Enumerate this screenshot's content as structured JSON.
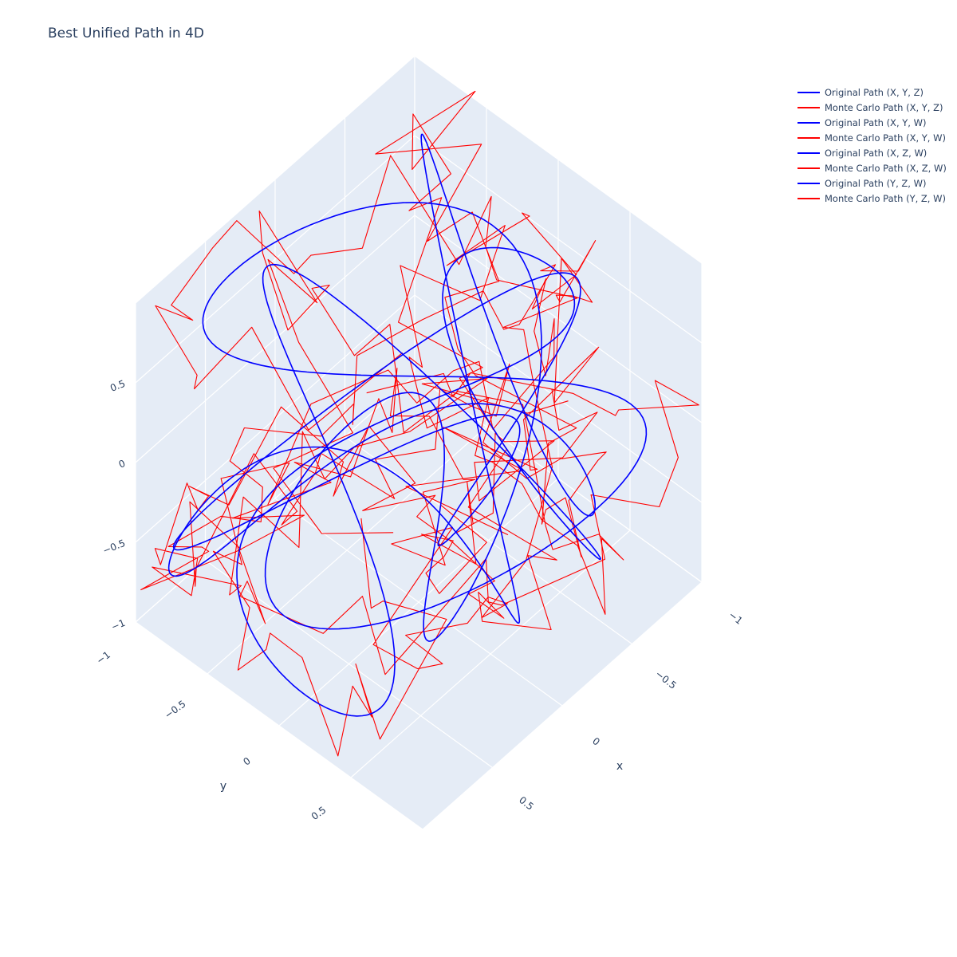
{
  "chart_data": {
    "type": "line",
    "title": "Best Unified Path in 4D",
    "axes": {
      "x": {
        "title": "x",
        "ticks": [
          "−1",
          "−0.5",
          "0",
          "0.5"
        ]
      },
      "y": {
        "title": "y",
        "ticks": [
          "−1",
          "−0.5",
          "0",
          "0.5"
        ]
      },
      "z": {
        "title": "",
        "ticks": [
          "0.5",
          "0",
          "−0.5",
          "−1"
        ]
      }
    },
    "range": [
      -1,
      1
    ],
    "series": [
      {
        "name": "Original Path (X, Y, Z)",
        "color": "#0000ff",
        "kind": "original",
        "dims": [
          "X",
          "Y",
          "Z"
        ]
      },
      {
        "name": "Monte Carlo Path (X, Y, Z)",
        "color": "#ff0000",
        "kind": "montecarlo",
        "dims": [
          "X",
          "Y",
          "Z"
        ]
      },
      {
        "name": "Original Path (X, Y, W)",
        "color": "#0000ff",
        "kind": "original",
        "dims": [
          "X",
          "Y",
          "W"
        ]
      },
      {
        "name": "Monte Carlo Path (X, Y, W)",
        "color": "#ff0000",
        "kind": "montecarlo",
        "dims": [
          "X",
          "Y",
          "W"
        ]
      },
      {
        "name": "Original Path (X, Z, W)",
        "color": "#0000ff",
        "kind": "original",
        "dims": [
          "X",
          "Z",
          "W"
        ]
      },
      {
        "name": "Monte Carlo Path (X, Z, W)",
        "color": "#ff0000",
        "kind": "montecarlo",
        "dims": [
          "X",
          "Z",
          "W"
        ]
      },
      {
        "name": "Original Path (Y, Z, W)",
        "color": "#0000ff",
        "kind": "original",
        "dims": [
          "Y",
          "Z",
          "W"
        ]
      },
      {
        "name": "Monte Carlo Path (Y, Z, W)",
        "color": "#ff0000",
        "kind": "montecarlo",
        "dims": [
          "Y",
          "Z",
          "W"
        ]
      }
    ],
    "grid": true,
    "legend_position": "top-right",
    "background": "#e5ecf6"
  }
}
